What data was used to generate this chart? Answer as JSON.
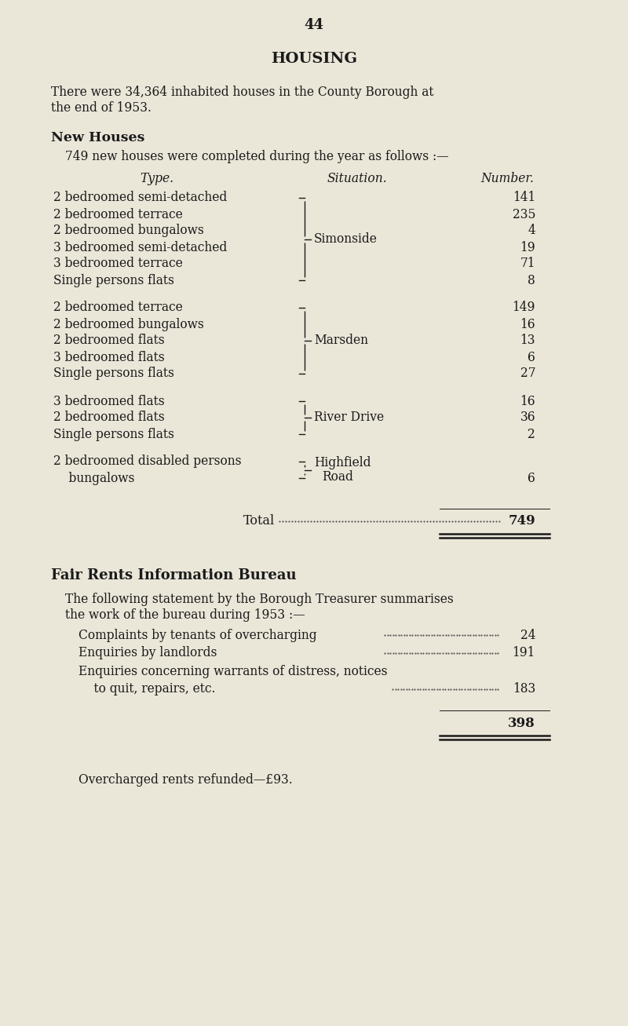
{
  "bg_color": "#eae6d8",
  "text_color": "#1a1a1a",
  "page_number": "44",
  "title": "HOUSING",
  "intro_line1": "There were 34,364 inhabited houses in the County Borough at",
  "intro_line2": "the end of 1953.",
  "section1_title": "New Houses",
  "section1_intro": "749 new houses were completed during the year as follows :—",
  "col_type_header": "Type.",
  "col_situation_header": "Situation.",
  "col_number_header": "Number.",
  "table_groups": [
    {
      "rows": [
        {
          "type": "2 bedroomed semi-detached",
          "number": "141"
        },
        {
          "type": "2 bedroomed terrace",
          "number": "235"
        },
        {
          "type": "2 bedroomed bungalows",
          "number": "4"
        },
        {
          "type": "3 bedroomed semi-detached",
          "number": "19"
        },
        {
          "type": "3 bedroomed terrace",
          "number": "71"
        },
        {
          "type": "Single persons flats",
          "number": "8"
        }
      ],
      "situation": "Simonside",
      "sit_row": 3
    },
    {
      "rows": [
        {
          "type": "2 bedroomed terrace",
          "number": "149"
        },
        {
          "type": "2 bedroomed bungalows",
          "number": "16"
        },
        {
          "type": "2 bedroomed flats",
          "number": "13"
        },
        {
          "type": "3 bedroomed flats",
          "number": "6"
        },
        {
          "type": "Single persons flats",
          "number": "27"
        }
      ],
      "situation": "Marsden",
      "sit_row": 2
    },
    {
      "rows": [
        {
          "type": "3 bedroomed flats",
          "number": "16"
        },
        {
          "type": "2 bedroomed flats",
          "number": "36"
        },
        {
          "type": "Single persons flats",
          "number": "2"
        }
      ],
      "situation": "River Drive",
      "sit_row": 1
    },
    {
      "rows": [
        {
          "type": "2 bedroomed disabled persons",
          "number": ""
        },
        {
          "type": "    bungalows",
          "number": "6"
        }
      ],
      "situation": "Highfield\n    Road",
      "sit_row": 0,
      "sit_two_line": true
    }
  ],
  "total_label": "Total",
  "total_value": "749",
  "section2_title": "Fair Rents Information Bureau",
  "section2_intro1": "The following statement by the Borough Treasurer summarises",
  "section2_intro2": "the work of the bureau during 1953 :—",
  "bureau_rows": [
    {
      "label": "Complaints by tenants of overcharging",
      "value": "24",
      "has_dots": true
    },
    {
      "label": "Enquiries by landlords",
      "value": "191",
      "has_dots": true
    },
    {
      "label": "Enquiries concerning warrants of distress, notices",
      "value": "",
      "has_dots": false
    },
    {
      "label": "    to quit, repairs, etc.",
      "value": "183",
      "has_dots": true
    }
  ],
  "bureau_total": "398",
  "overcharged": "Overcharged rents refunded—£93."
}
